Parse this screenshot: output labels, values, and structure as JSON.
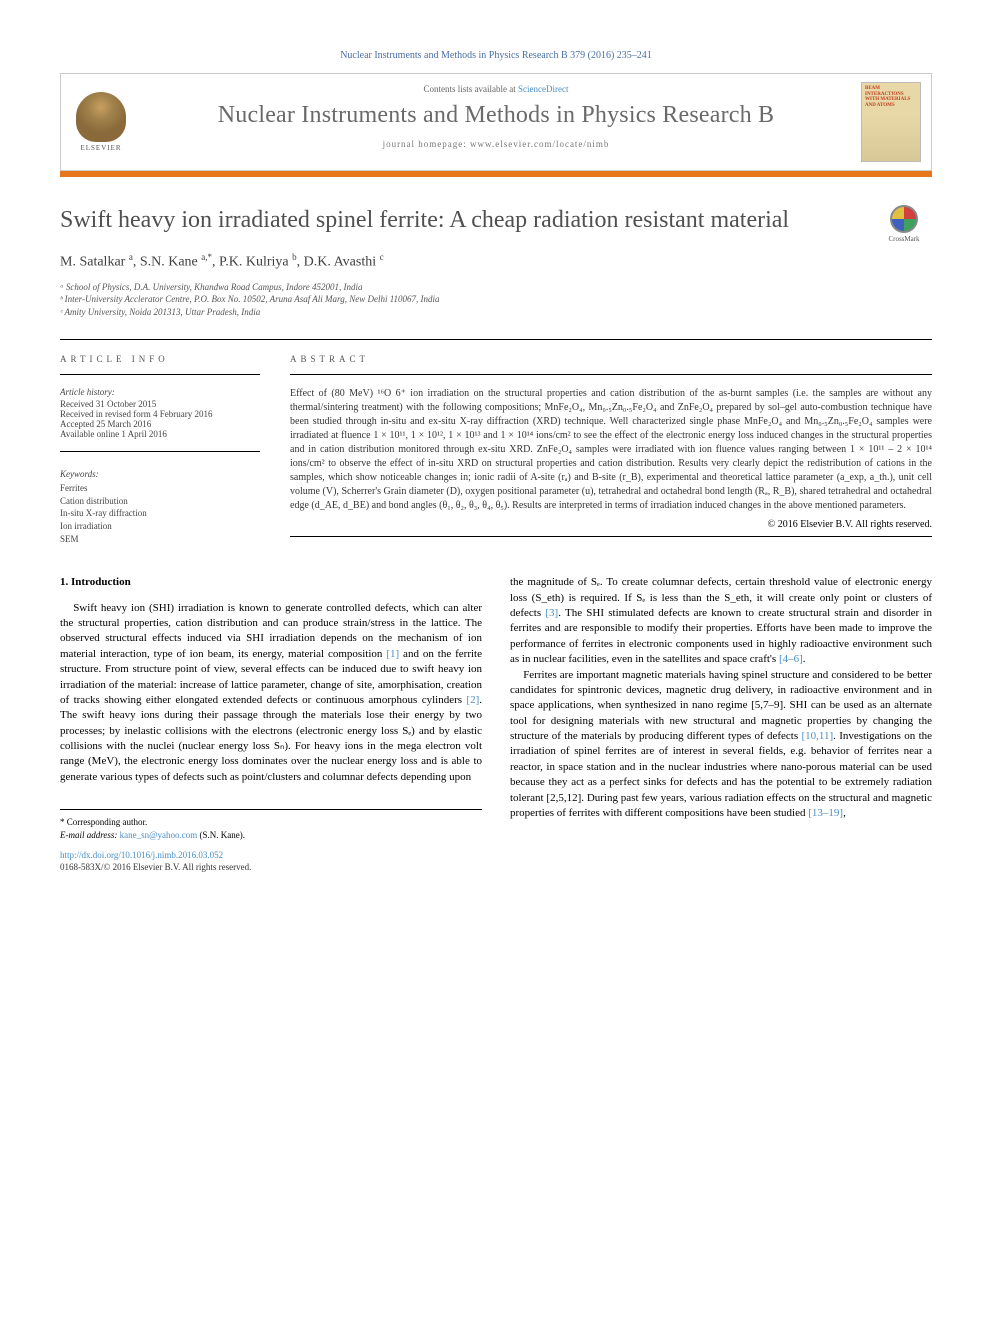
{
  "header": {
    "citation": "Nuclear Instruments and Methods in Physics Research B 379 (2016) 235–241",
    "contents_prefix": "Contents lists available at ",
    "contents_link": "ScienceDirect",
    "journal_name": "Nuclear Instruments and Methods in Physics Research B",
    "homepage_prefix": "journal homepage: ",
    "homepage_url": "www.elsevier.com/locate/nimb",
    "publisher": "ELSEVIER",
    "cover_text": "BEAM INTERACTIONS WITH MATERIALS AND ATOMS"
  },
  "article": {
    "title": "Swift heavy ion irradiated spinel ferrite: A cheap radiation resistant material",
    "crossmark": "CrossMark",
    "authors_html": "M. Satalkar <sup>a</sup>, S.N. Kane <sup>a,*</sup>, P.K. Kulriya <sup>b</sup>, D.K. Avasthi <sup>c</sup>",
    "affiliations": [
      "ᵃ School of Physics, D.A. University, Khandwa Road Campus, Indore 452001, India",
      "ᵇ Inter-University Acclerator Centre, P.O. Box No. 10502, Aruna Asaf Ali Marg, New Delhi 110067, India",
      "ᶜ Amity University, Noida 201313, Uttar Pradesh, India"
    ]
  },
  "info": {
    "heading": "ARTICLE INFO",
    "history_label": "Article history:",
    "history": [
      "Received 31 October 2015",
      "Received in revised form 4 February 2016",
      "Accepted 25 March 2016",
      "Available online 1 April 2016"
    ],
    "keywords_label": "Keywords:",
    "keywords": [
      "Ferrites",
      "Cation distribution",
      "In-situ X-ray diffraction",
      "Ion irradiation",
      "SEM"
    ]
  },
  "abstract": {
    "heading": "ABSTRACT",
    "text": "Effect of (80 MeV) ¹⁶O 6⁺ ion irradiation on the structural properties and cation distribution of the as-burnt samples (i.e. the samples are without any thermal/sintering treatment) with the following compositions; MnFe₂O₄, Mn₀.₅Zn₀.₅Fe₂O₄ and ZnFe₂O₄ prepared by sol–gel auto-combustion technique have been studied through in-situ and ex-situ X-ray diffraction (XRD) technique. Well characterized single phase MnFe₂O₄ and Mn₀.₅Zn₀.₅Fe₂O₄ samples were irradiated at fluence 1 × 10¹¹, 1 × 10¹², 1 × 10¹³ and 1 × 10¹⁴ ions/cm² to see the effect of the electronic energy loss induced changes in the structural properties and in cation distribution monitored through ex-situ XRD. ZnFe₂O₄ samples were irradiated with ion fluence values ranging between 1 × 10¹¹ – 2 × 10¹⁴ ions/cm² to observe the effect of in-situ XRD on structural properties and cation distribution. Results very clearly depict the redistribution of cations in the samples, which show noticeable changes in; ionic radii of A-site (rₐ) and B-site (r_B), experimental and theoretical lattice parameter (a_exp, a_th.), unit cell volume (V), Scherrer's Grain diameter (D), oxygen positional parameter (u), tetrahedral and octahedral bond length (Rₐ, R_B), shared tetrahedral and octahedral edge (d_AE, d_BE) and bond angles (θ₁, θ₂, θ₃, θ₄, θ₅). Results are interpreted in terms of irradiation induced changes in the above mentioned parameters.",
    "copyright": "© 2016 Elsevier B.V. All rights reserved."
  },
  "body": {
    "section_heading": "1. Introduction",
    "col1_p1": "Swift heavy ion (SHI) irradiation is known to generate controlled defects, which can alter the structural properties, cation distribution and can produce strain/stress in the lattice. The observed structural effects induced via SHI irradiation depends on the mechanism of ion material interaction, type of ion beam, its energy, material composition [1] and on the ferrite structure. From structure point of view, several effects can be induced due to swift heavy ion irradiation of the material: increase of lattice parameter, change of site, amorphisation, creation of tracks showing either elongated extended defects or continuous amorphous cylinders [2]. The swift heavy ions during their passage through the materials lose their energy by two processes; by inelastic collisions with the electrons (electronic energy loss Sₑ) and by elastic collisions with the nuclei (nuclear energy loss Sₙ). For heavy ions in the mega electron volt range (MeV), the electronic energy loss dominates over the nuclear energy loss and is able to generate various types of defects such as point/clusters and columnar defects depending upon",
    "col2_p1": "the magnitude of Sₑ. To create columnar defects, certain threshold value of electronic energy loss (S_eth) is required. If Sₑ is less than the S_eth, it will create only point or clusters of defects [3]. The SHI stimulated defects are known to create structural strain and disorder in ferrites and are responsible to modify their properties. Efforts have been made to improve the performance of ferrites in electronic components used in highly radioactive environment such as in nuclear facilities, even in the satellites and space craft's [4–6].",
    "col2_p2": "Ferrites are important magnetic materials having spinel structure and considered to be better candidates for spintronic devices, magnetic drug delivery, in radioactive environment and in space applications, when synthesized in nano regime [5,7–9]. SHI can be used as an alternate tool for designing materials with new structural and magnetic properties by changing the structure of the materials by producing different types of defects [10,11]. Investigations on the irradiation of spinel ferrites are of interest in several fields, e.g. behavior of ferrites near a reactor, in space station and in the nuclear industries where nano-porous material can be used because they act as a perfect sinks for defects and has the potential to be extremely radiation tolerant [2,5,12]. During past few years, various radiation effects on the structural and magnetic properties of ferrites with different compositions have been studied [13–19],"
  },
  "footer": {
    "corresponding_label": "* Corresponding author.",
    "email_label": "E-mail address: ",
    "email": "kane_sn@yahoo.com",
    "email_suffix": " (S.N. Kane).",
    "doi": "http://dx.doi.org/10.1016/j.nimb.2016.03.052",
    "issn_copy": "0168-583X/© 2016 Elsevier B.V. All rights reserved."
  },
  "colors": {
    "link": "#4a8fc5",
    "orange_bar": "#e8761a",
    "title_gray": "#505050",
    "journal_gray": "#6a6a6a"
  }
}
